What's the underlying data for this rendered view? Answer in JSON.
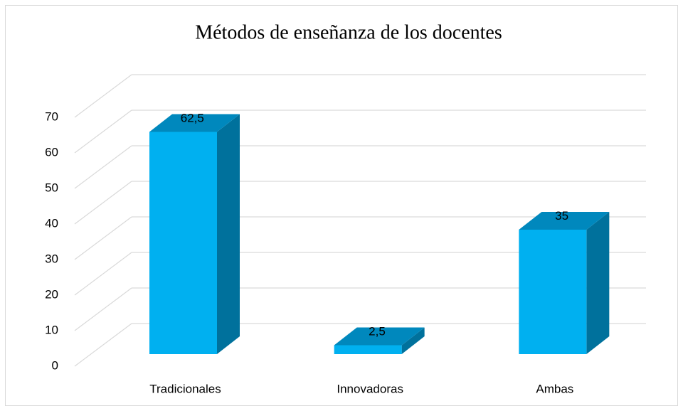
{
  "chart_data": {
    "type": "bar3d",
    "title": "Métodos de enseñanza de los docentes",
    "categories": [
      "Tradicionales",
      "Innovadoras",
      "Ambas"
    ],
    "values": [
      62.5,
      2.5,
      35
    ],
    "value_labels": [
      "62,5",
      "2,5",
      "35"
    ],
    "color": "#00b0f0",
    "ylim": [
      0,
      70
    ],
    "yticks": [
      0,
      10,
      20,
      30,
      40,
      50,
      60,
      70
    ],
    "grid": true
  }
}
